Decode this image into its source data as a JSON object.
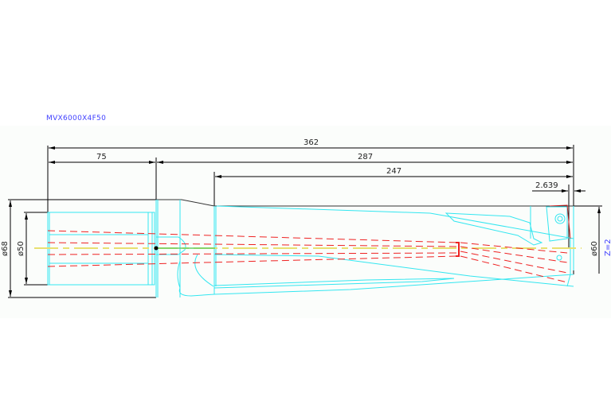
{
  "drawing": {
    "title": "MVX6000X4F50",
    "dimensions": {
      "overall_length": "362",
      "shank_length": "75",
      "body_length": "287",
      "flute_length": "247",
      "tip_offset": "2.639",
      "shank_outer_diameter": "ø68",
      "shank_diameter": "ø50",
      "drill_diameter": "ø60"
    },
    "flutes": "Z=2"
  },
  "colors": {
    "geometry": "#33e6f0",
    "coolant_holes": "#ee2222",
    "centerline": "#e8e070",
    "dimension": "#000000",
    "title": "#4040ff"
  }
}
